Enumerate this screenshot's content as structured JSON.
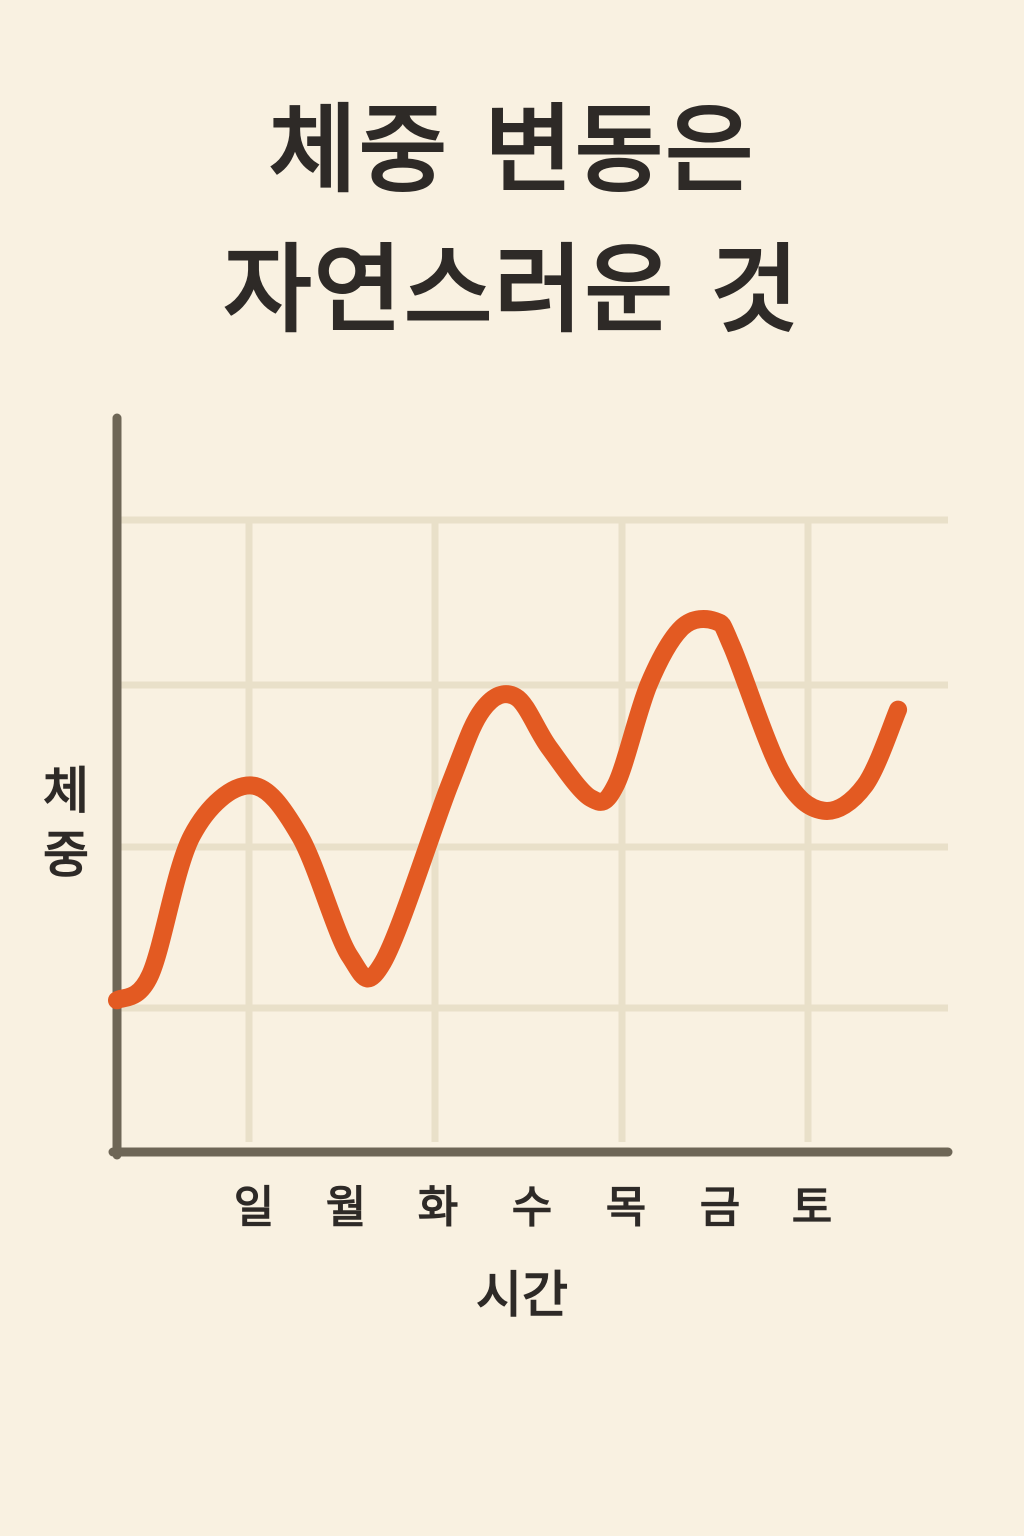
{
  "title": {
    "line1": "체중 변동은",
    "line2": "자연스러운 것"
  },
  "colors": {
    "background": "#f9f1e1",
    "grid": "#e9e0c9",
    "axis": "#6e6656",
    "line": "#e35a22",
    "text": "#2e2a27"
  },
  "chart_data": {
    "type": "line",
    "title": "체중 변동은 자연스러운 것",
    "xlabel": "시간",
    "ylabel": "체중",
    "ylim": [
      0,
      100
    ],
    "xlim": [
      0,
      100
    ],
    "grid": true,
    "legend": "none",
    "categories": [
      "일",
      "월",
      "화",
      "수",
      "목",
      "금",
      "토"
    ],
    "series": [
      {
        "x": [
          0,
          4,
          9,
          16,
          22,
          28,
          32,
          40,
          44,
          48,
          52,
          57,
          60,
          64,
          68,
          72,
          74,
          80,
          85,
          90,
          94
        ],
        "values": [
          24,
          28,
          50,
          58,
          50,
          31,
          30,
          58,
          70,
          72,
          64,
          56,
          58,
          74,
          83,
          84,
          80,
          60,
          54,
          58,
          70
        ]
      }
    ]
  }
}
